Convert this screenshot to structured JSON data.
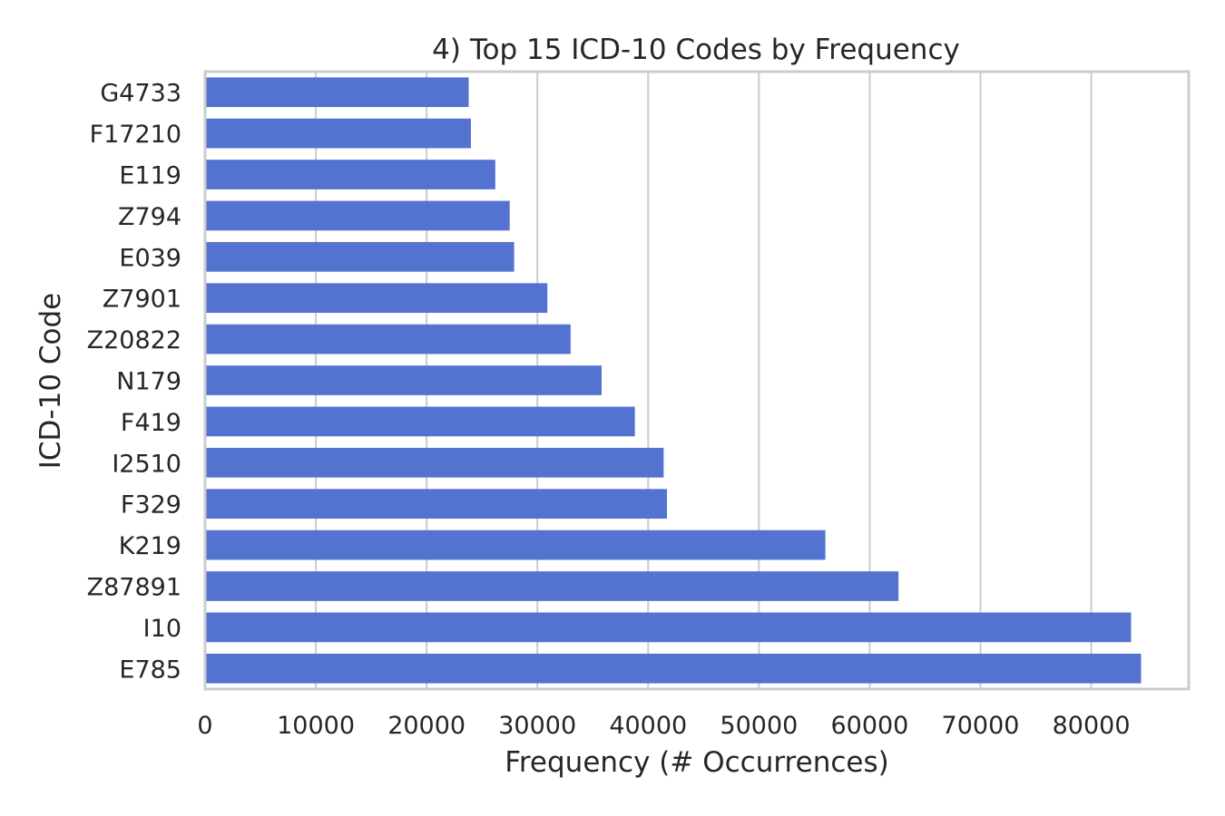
{
  "chart_data": {
    "type": "bar",
    "orientation": "horizontal",
    "title": "4) Top 15 ICD-10 Codes by Frequency",
    "xlabel": "Frequency (# Occurrences)",
    "ylabel": "ICD-10 Code",
    "categories": [
      "G4733",
      "F17210",
      "E119",
      "Z794",
      "E039",
      "Z7901",
      "Z20822",
      "N179",
      "F419",
      "I2510",
      "F329",
      "K219",
      "Z87891",
      "I10",
      "E785"
    ],
    "values": [
      23800,
      24000,
      26200,
      27500,
      27900,
      30900,
      33000,
      35800,
      38800,
      41400,
      41700,
      56000,
      62600,
      83600,
      84500
    ],
    "xlim": [
      0,
      88800
    ],
    "xticks": [
      0,
      10000,
      20000,
      30000,
      40000,
      50000,
      60000,
      70000,
      80000
    ],
    "xtick_labels": [
      "0",
      "10000",
      "20000",
      "30000",
      "40000",
      "50000",
      "60000",
      "70000",
      "80000"
    ],
    "grid": "x-axis only",
    "bar_color": "#5473d1"
  }
}
